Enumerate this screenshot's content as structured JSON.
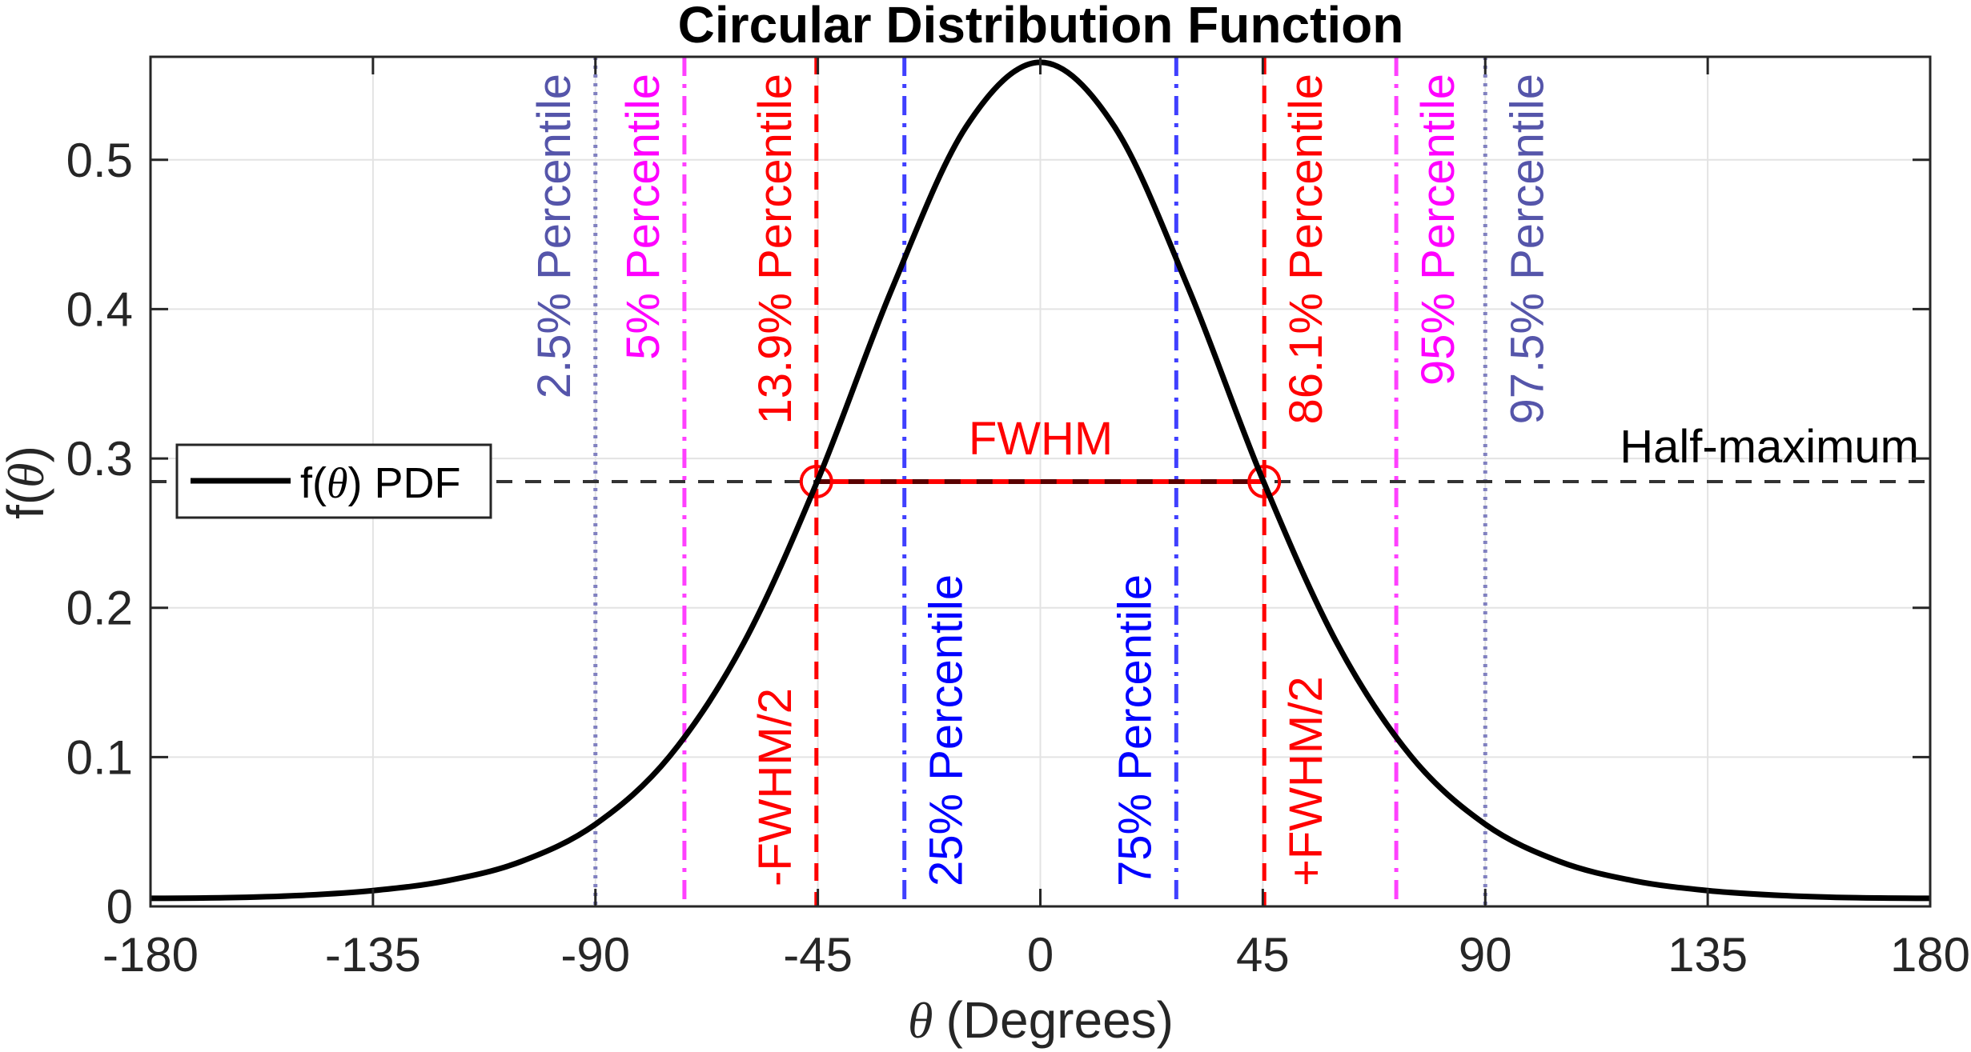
{
  "chart_data": {
    "type": "line",
    "title": "Circular Distribution Function",
    "xlabel_symbol": "θ",
    "xlabel_text": "(Degrees)",
    "ylabel_prefix": "f(",
    "ylabel_symbol": "θ",
    "ylabel_suffix": ")",
    "xlim": [
      -180,
      180
    ],
    "ylim": [
      0,
      0.569
    ],
    "xticks": [
      -180,
      -135,
      -90,
      -45,
      0,
      45,
      90,
      135,
      180
    ],
    "xtick_labels": [
      "-180",
      "-135",
      "-90",
      "-45",
      "0",
      "45",
      "90",
      "135",
      "180"
    ],
    "yticks": [
      0,
      0.1,
      0.2,
      0.3,
      0.4,
      0.5
    ],
    "ytick_labels": [
      "0",
      "0.1",
      "0.2",
      "0.3",
      "0.4",
      "0.5"
    ],
    "grid": true,
    "legend": {
      "placement": "left",
      "entries": [
        {
          "prefix": "f(",
          "symbol": "θ",
          "suffix": ") PDF",
          "color": "#000000"
        }
      ]
    },
    "series": [
      {
        "name": "f(θ) PDF",
        "color": "#000000",
        "x": [
          -180,
          -165,
          -150,
          -135,
          -120,
          -105,
          -90,
          -75,
          -60,
          -45,
          -30,
          -15,
          0,
          15,
          30,
          45,
          60,
          75,
          90,
          105,
          120,
          135,
          150,
          165,
          180
        ],
        "y": [
          0.0054,
          0.0058,
          0.0073,
          0.0106,
          0.0172,
          0.0301,
          0.055,
          0.1005,
          0.1764,
          0.2857,
          0.4137,
          0.5222,
          0.5653,
          0.5222,
          0.4137,
          0.2857,
          0.1764,
          0.1005,
          0.055,
          0.0301,
          0.0172,
          0.0106,
          0.0073,
          0.0058,
          0.0054
        ]
      }
    ],
    "half_maximum": {
      "value": 0.2845,
      "label": "Half-maximum",
      "color": "#333333"
    },
    "fwhm": {
      "from": -45.3,
      "to": 45.3,
      "label": "FWHM",
      "color": "#FF0000"
    },
    "vlines": [
      {
        "x": -90,
        "label": "2.5% Percentile",
        "color": "#8080C0",
        "text_color": "#5555AA",
        "style": "dotted",
        "label_pos": "top-left"
      },
      {
        "x": -72,
        "label": "5% Percentile",
        "color": "#FF40FF",
        "text_color": "#FF00FF",
        "style": "dashdot",
        "label_pos": "top-left"
      },
      {
        "x": -45.3,
        "label": "13.9% Percentile",
        "color": "#FF0000",
        "text_color": "#FF0000",
        "style": "dashed",
        "label_pos": "top-left"
      },
      {
        "x": -27.5,
        "label": "25% Percentile",
        "color": "#4040FF",
        "text_color": "#0000FF",
        "style": "dashdot",
        "label_pos": "bottom-right"
      },
      {
        "x": 27.5,
        "label": "75% Percentile",
        "color": "#4040FF",
        "text_color": "#0000FF",
        "style": "dashdot",
        "label_pos": "bottom-left"
      },
      {
        "x": 45.3,
        "label": "86.1% Percentile",
        "color": "#FF0000",
        "text_color": "#FF0000",
        "style": "dashed",
        "label_pos": "top-right"
      },
      {
        "x": 72,
        "label": "95% Percentile",
        "color": "#FF40FF",
        "text_color": "#FF00FF",
        "style": "dashdot",
        "label_pos": "top-right"
      },
      {
        "x": 90,
        "label": "97.5% Percentile",
        "color": "#8080C0",
        "text_color": "#5555AA",
        "style": "dotted",
        "label_pos": "top-right"
      }
    ],
    "fwhm_half_labels": [
      {
        "x": -45.3,
        "label": "-FWHM/2",
        "color": "#FF0000",
        "label_pos": "bottom-left"
      },
      {
        "x": 45.3,
        "label": "+FWHM/2",
        "color": "#FF0000",
        "label_pos": "bottom-right"
      }
    ]
  }
}
